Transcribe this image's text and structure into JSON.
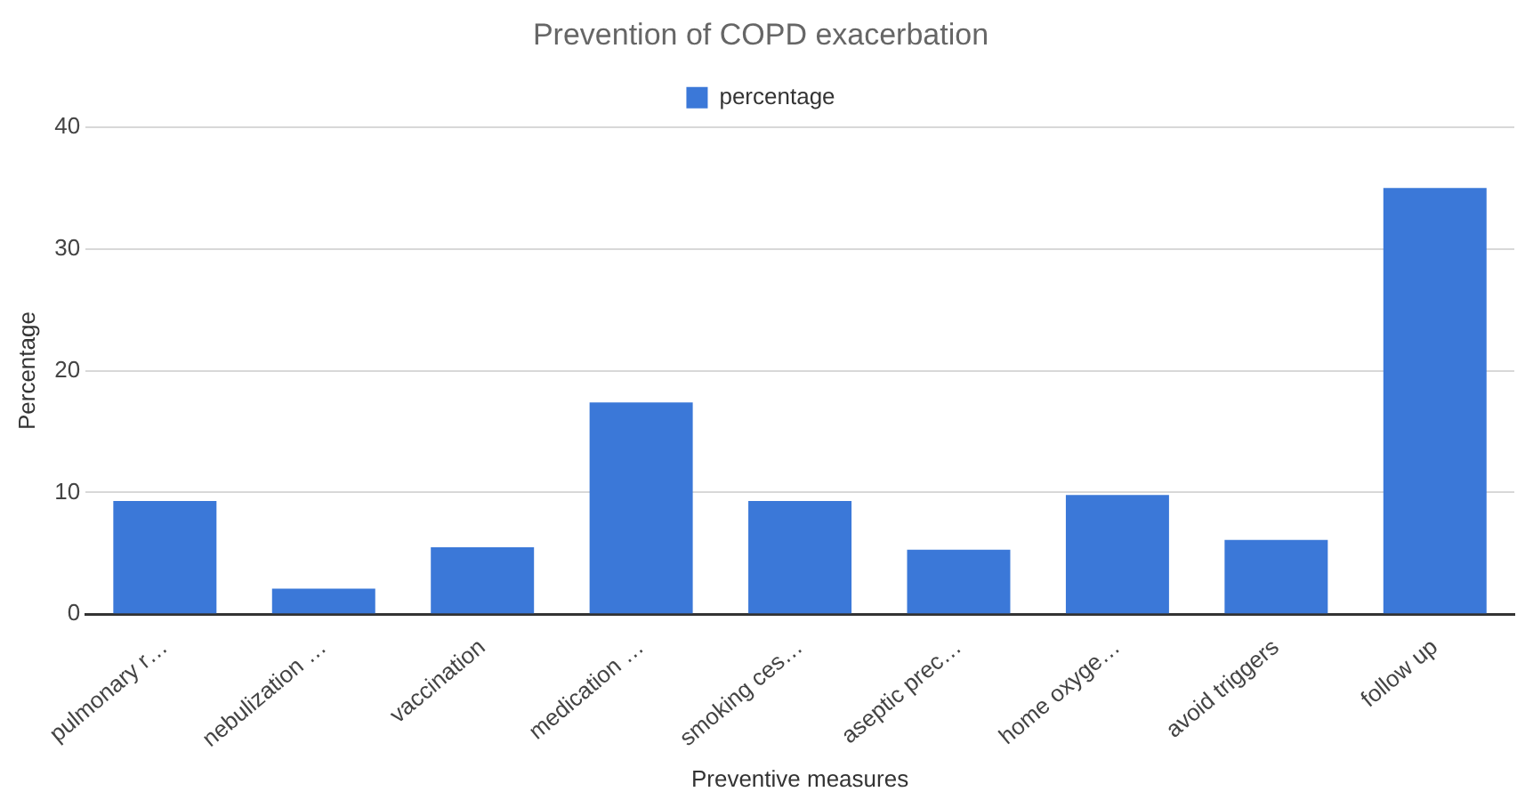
{
  "chart_data": {
    "type": "bar",
    "title": "Prevention of COPD exacerbation",
    "xlabel": "Preventive measures",
    "ylabel": "Percentage",
    "categories": [
      "pulmonary r…",
      "nebulization …",
      "vaccination",
      "medication …",
      "smoking ces…",
      "aseptic prec…",
      "home oxyge…",
      "avoid triggers",
      "follow up"
    ],
    "series": [
      {
        "name": "percentage",
        "color": "#3b78d8",
        "values": [
          9.3,
          2.1,
          5.5,
          17.4,
          9.3,
          5.3,
          9.8,
          6.1,
          35
        ]
      }
    ],
    "ylim": [
      0,
      40
    ],
    "yticks": [
      0,
      10,
      20,
      30,
      40
    ],
    "grid": "y",
    "legend": "top"
  }
}
